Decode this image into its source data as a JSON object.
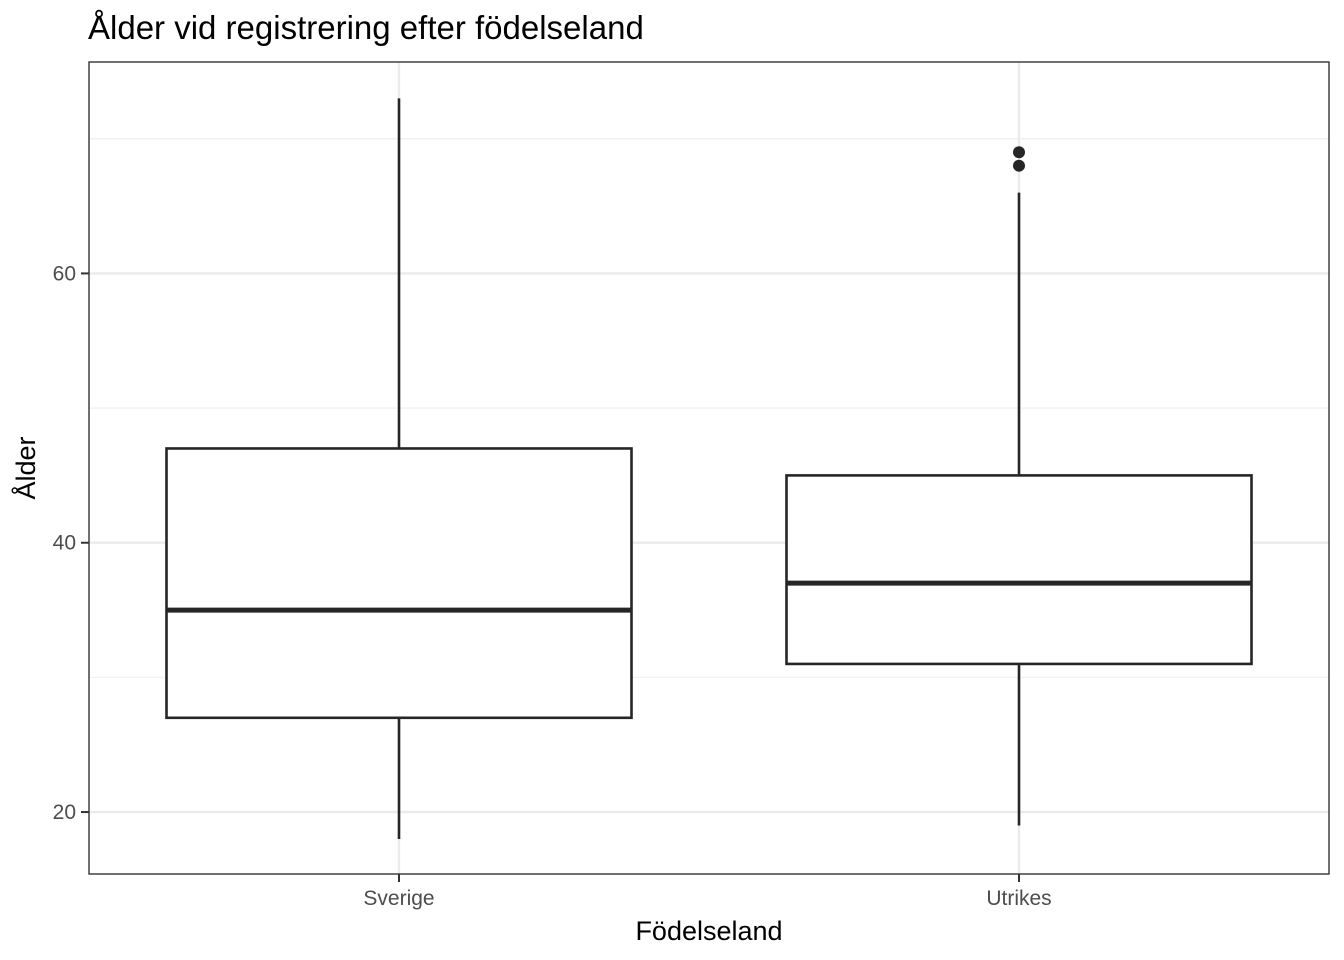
{
  "chart_data": {
    "type": "boxplot",
    "title": "Ålder vid registrering efter födelseland",
    "xlabel": "Födelseland",
    "ylabel": "Ålder",
    "categories": [
      "Sverige",
      "Utrikes"
    ],
    "boxes": [
      {
        "category": "Sverige",
        "whisker_low": 18,
        "q1": 27,
        "median": 35,
        "q3": 47,
        "whisker_high": 73,
        "outliers": []
      },
      {
        "category": "Utrikes",
        "whisker_low": 19,
        "q1": 31,
        "median": 37,
        "q3": 45,
        "whisker_high": 66,
        "outliers": [
          68,
          69
        ]
      }
    ],
    "yticks": [
      20,
      40,
      60
    ],
    "ytick_labels": [
      "20",
      "40",
      "60"
    ],
    "ylim": [
      15.4,
      75.7
    ],
    "grid": true,
    "legend": "none",
    "colors": {
      "box_stroke": "#262626",
      "box_fill": "#ffffff",
      "grid_major": "#ebebeb",
      "grid_minor": "#f2f2f2",
      "panel_border": "#333333",
      "tick_label": "#4d4d4d"
    }
  }
}
